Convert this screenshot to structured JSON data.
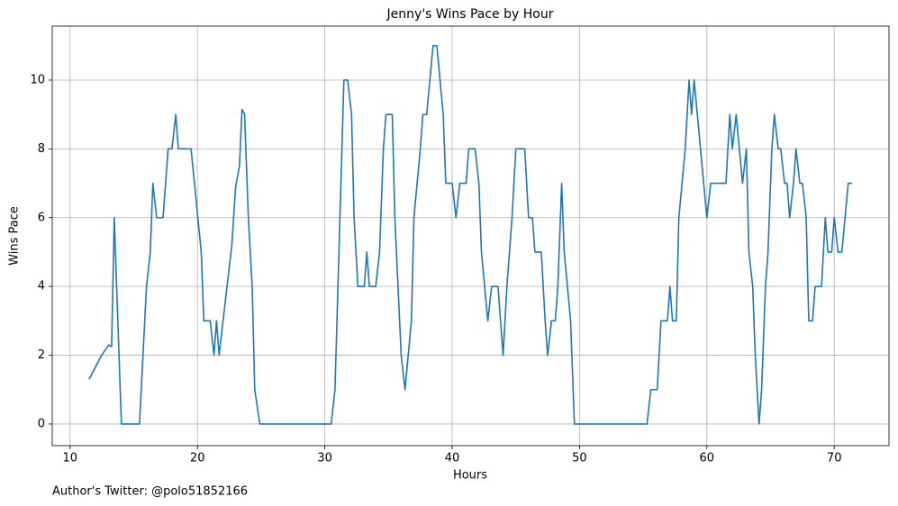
{
  "chart_data": {
    "type": "line",
    "title": "Jenny's Wins Pace by Hour",
    "x_label": "Hours",
    "y_label": "Wins Pace",
    "annotation": "Author's Twitter: @polo51852166",
    "color": "#1f77b4",
    "grid": true,
    "xlim": [
      8.6,
      74.3
    ],
    "ylim": [
      -0.63,
      11.57
    ],
    "xticks": [
      10,
      20,
      30,
      40,
      50,
      60,
      70
    ],
    "yticks": [
      0,
      2,
      4,
      6,
      8,
      10
    ],
    "x": [
      11.5,
      12.05,
      12.48,
      13.04,
      13.26,
      13.47,
      14.03,
      15.45,
      16.0,
      16.3,
      16.5,
      16.8,
      17.3,
      17.7,
      18.0,
      18.3,
      18.5,
      19.5,
      20.3,
      20.5,
      21.0,
      21.3,
      21.5,
      21.7,
      22.7,
      23.0,
      23.3,
      23.5,
      23.7,
      24.0,
      24.3,
      24.5,
      24.9,
      30.5,
      30.8,
      31.5,
      31.8,
      32.1,
      32.3,
      32.6,
      33.1,
      33.3,
      33.5,
      34.0,
      34.3,
      34.6,
      34.8,
      35.3,
      35.5,
      36.0,
      36.3,
      36.8,
      37.0,
      37.5,
      37.7,
      38.0,
      38.5,
      38.8,
      39.3,
      39.5,
      40.0,
      40.3,
      40.6,
      41.1,
      41.3,
      41.8,
      42.1,
      42.3,
      42.8,
      43.1,
      43.6,
      44.0,
      44.3,
      44.7,
      45.0,
      45.7,
      46.0,
      46.3,
      46.5,
      47.0,
      47.3,
      47.5,
      47.8,
      48.1,
      48.3,
      48.6,
      48.8,
      49.3,
      49.6,
      55.3,
      55.6,
      56.1,
      56.4,
      56.9,
      57.1,
      57.3,
      57.6,
      57.8,
      58.3,
      58.6,
      58.8,
      59.0,
      60.0,
      60.3,
      61.5,
      61.8,
      62.0,
      62.3,
      62.8,
      63.1,
      63.3,
      63.6,
      63.8,
      64.1,
      64.3,
      64.6,
      64.8,
      65.1,
      65.3,
      65.6,
      65.8,
      66.1,
      66.3,
      66.5,
      66.8,
      67.0,
      67.3,
      67.5,
      67.8,
      68.0,
      68.3,
      68.5,
      69.0,
      69.3,
      69.5,
      69.8,
      70.0,
      70.3,
      70.6,
      71.1,
      71.4
    ],
    "values": [
      1.3,
      1.7,
      2.0,
      2.3,
      2.25,
      6,
      0,
      0,
      4,
      5,
      7,
      6,
      6,
      8,
      8,
      9,
      8,
      8,
      5,
      3,
      3,
      2,
      3,
      2,
      5.2,
      6.9,
      7.5,
      9.15,
      9.0,
      6,
      4,
      1,
      0,
      0,
      1,
      10,
      10,
      9,
      6,
      4,
      4,
      5,
      4,
      4,
      5,
      8,
      9,
      9,
      6,
      2,
      1,
      3,
      6,
      8,
      9,
      9,
      11,
      11,
      9,
      7,
      7,
      6,
      7,
      7,
      8,
      8,
      7,
      5,
      3,
      4,
      4,
      2,
      4,
      6,
      8,
      8,
      6,
      6,
      5,
      5,
      3,
      2,
      3,
      3,
      4,
      7,
      5,
      3,
      0,
      0,
      1,
      1,
      3,
      3,
      4,
      3,
      3,
      6,
      8,
      10,
      9,
      10,
      6,
      7,
      7,
      9,
      8,
      9,
      7,
      8,
      5,
      4,
      2,
      0,
      1,
      4,
      5,
      8,
      9,
      8,
      8,
      7,
      7,
      6,
      7,
      8,
      7,
      7,
      6,
      3,
      3,
      4,
      4,
      6,
      5,
      5,
      6,
      5,
      5,
      7,
      7
    ]
  }
}
